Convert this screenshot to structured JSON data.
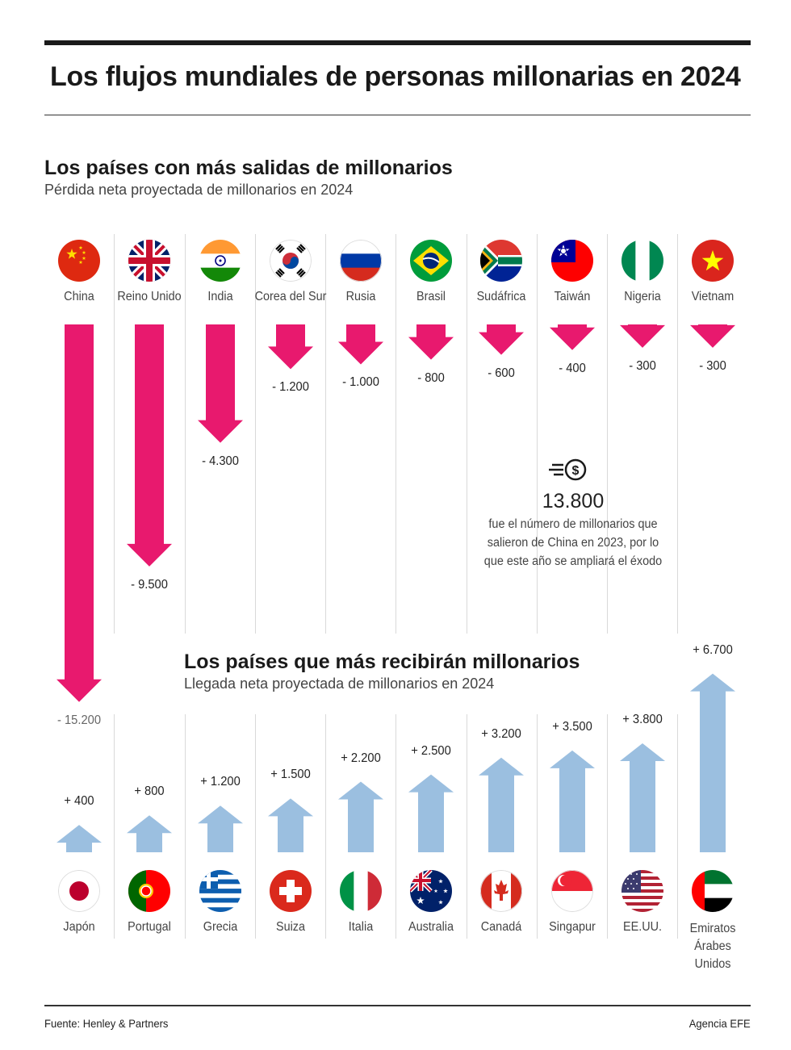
{
  "title": "Los flujos mundiales de personas millonarias en 2024",
  "colors": {
    "outflow": "#e8196e",
    "inflow": "#9bbfe0",
    "text": "#1a1a1a"
  },
  "chart_data": [
    {
      "type": "bar",
      "title": "Los países con más salidas de millonarios",
      "subtitle": "Pérdida neta proyectada de millonarios en 2024",
      "categories": [
        "China",
        "Reino Unido",
        "India",
        "Corea del Sur",
        "Rusia",
        "Brasil",
        "Sudáfrica",
        "Taiwán",
        "Nigeria",
        "Vietnam"
      ],
      "values": [
        -15200,
        -9500,
        -4300,
        -1200,
        -1000,
        -800,
        -600,
        -400,
        -300,
        -300
      ],
      "labels": [
        "- 15.200",
        "- 9.500",
        "- 4.300",
        "- 1.200",
        "- 1.000",
        "- 800",
        "- 600",
        "- 400",
        "- 300",
        "- 300"
      ],
      "flag_icons": [
        "china-flag-icon",
        "uk-flag-icon",
        "india-flag-icon",
        "south-korea-flag-icon",
        "russia-flag-icon",
        "brazil-flag-icon",
        "south-africa-flag-icon",
        "taiwan-flag-icon",
        "nigeria-flag-icon",
        "vietnam-flag-icon"
      ],
      "color": "#e8196e"
    },
    {
      "type": "bar",
      "title": "Los países que más recibirán millonarios",
      "subtitle": "Llegada neta proyectada de millonarios en 2024",
      "categories": [
        "Japón",
        "Portugal",
        "Grecia",
        "Suiza",
        "Italia",
        "Australia",
        "Canadá",
        "Singapur",
        "EE.UU.",
        "Emiratos Árabes Unidos"
      ],
      "values": [
        400,
        800,
        1200,
        1500,
        2200,
        2500,
        3200,
        3500,
        3800,
        6700
      ],
      "labels": [
        "+ 400",
        "+ 800",
        "+ 1.200",
        "+ 1.500",
        "+ 2.200",
        "+ 2.500",
        "+ 3.200",
        "+ 3.500",
        "+ 3.800",
        "+ 6.700"
      ],
      "flag_icons": [
        "japan-flag-icon",
        "portugal-flag-icon",
        "greece-flag-icon",
        "switzerland-flag-icon",
        "italy-flag-icon",
        "australia-flag-icon",
        "canada-flag-icon",
        "singapore-flag-icon",
        "usa-flag-icon",
        "uae-flag-icon"
      ],
      "color": "#9bbfe0"
    }
  ],
  "info": {
    "icon": "money-flow-icon",
    "number": "13.800",
    "text_lines": [
      "fue el número de millonarios que",
      "salieron de China en 2023, por lo",
      "que este año se ampliará el éxodo"
    ]
  },
  "footer": {
    "source": "Fuente: Henley & Partners",
    "agency": "Agencia EFE"
  }
}
